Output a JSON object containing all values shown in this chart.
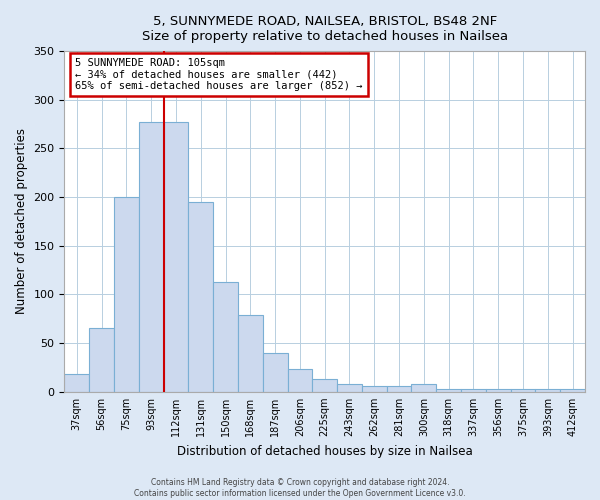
{
  "title": "5, SUNNYMEDE ROAD, NAILSEA, BRISTOL, BS48 2NF",
  "subtitle": "Size of property relative to detached houses in Nailsea",
  "xlabel": "Distribution of detached houses by size in Nailsea",
  "ylabel": "Number of detached properties",
  "bar_labels": [
    "37sqm",
    "56sqm",
    "75sqm",
    "93sqm",
    "112sqm",
    "131sqm",
    "150sqm",
    "168sqm",
    "187sqm",
    "206sqm",
    "225sqm",
    "243sqm",
    "262sqm",
    "281sqm",
    "300sqm",
    "318sqm",
    "337sqm",
    "356sqm",
    "375sqm",
    "393sqm",
    "412sqm"
  ],
  "bar_values": [
    18,
    66,
    200,
    277,
    277,
    195,
    113,
    79,
    40,
    23,
    13,
    8,
    6,
    6,
    8,
    3,
    3,
    3,
    3,
    3,
    3
  ],
  "bar_color": "#ccd9ee",
  "bar_edge_color": "#7aafd4",
  "vline_x_index": 3.5,
  "vline_color": "#cc0000",
  "annotation_title": "5 SUNNYMEDE ROAD: 105sqm",
  "annotation_line1": "← 34% of detached houses are smaller (442)",
  "annotation_line2": "65% of semi-detached houses are larger (852) →",
  "annotation_box_color": "#cc0000",
  "ylim": [
    0,
    350
  ],
  "yticks": [
    0,
    50,
    100,
    150,
    200,
    250,
    300,
    350
  ],
  "footer1": "Contains HM Land Registry data © Crown copyright and database right 2024.",
  "footer2": "Contains public sector information licensed under the Open Government Licence v3.0.",
  "bg_color": "#dde8f5",
  "plot_bg_color": "#ffffff",
  "grid_color": "#b8cfe0"
}
